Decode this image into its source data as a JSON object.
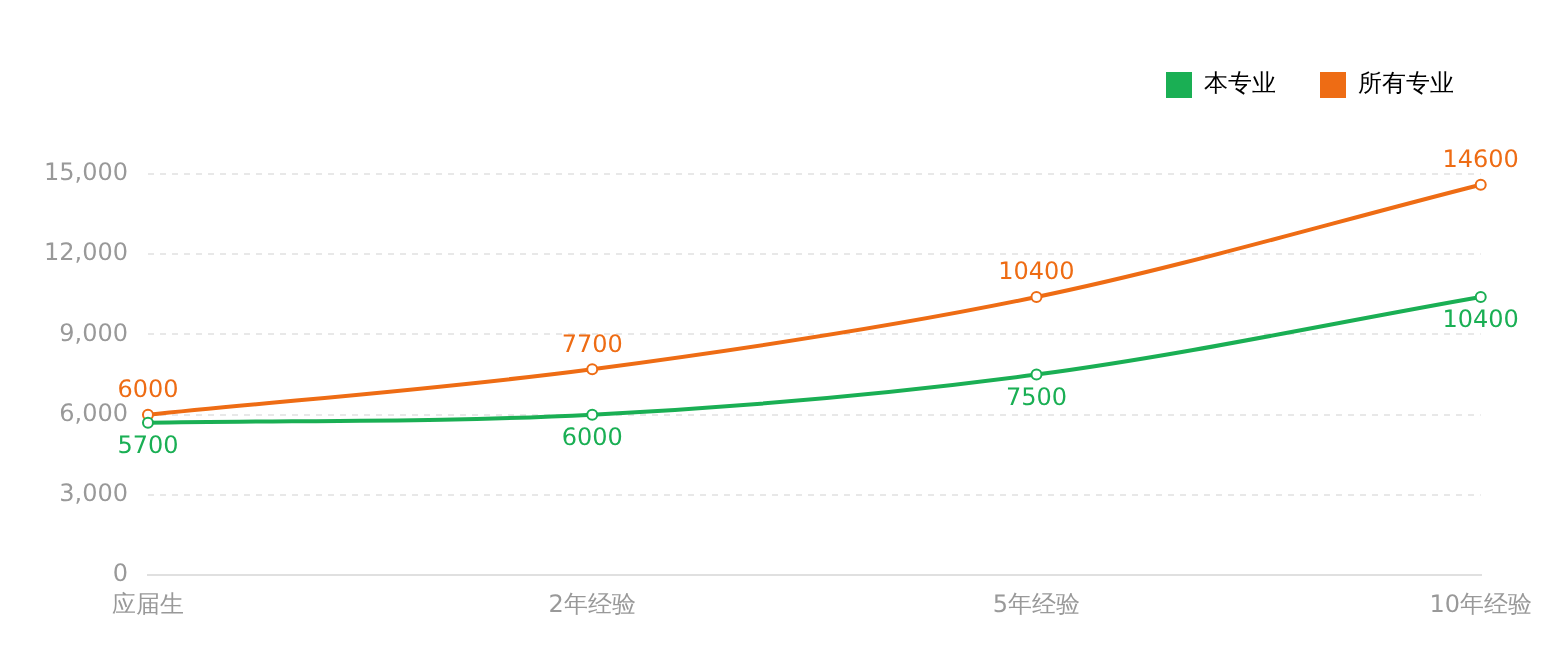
{
  "chart_data": {
    "type": "line",
    "categories": [
      "应届生",
      "2年经验",
      "5年经验",
      "10年经验"
    ],
    "series": [
      {
        "name": "本专业",
        "color": "#1aaf54",
        "values": [
          5700,
          6000,
          7500,
          10400
        ]
      },
      {
        "name": "所有专业",
        "color": "#ee6c14",
        "values": [
          6000,
          7700,
          10400,
          14600
        ]
      }
    ],
    "ylim": [
      0,
      15000
    ],
    "yticks": [
      0,
      {
        "value": 3000,
        "label": "3,000"
      },
      {
        "value": 6000,
        "label": "6,000"
      },
      {
        "value": 9000,
        "label": "9,000"
      },
      {
        "value": 12000,
        "label": "12,000"
      },
      {
        "value": 15000,
        "label": "15,000"
      }
    ],
    "grid": "y",
    "legend": "top right",
    "marker": "circle",
    "data_labels": true
  }
}
